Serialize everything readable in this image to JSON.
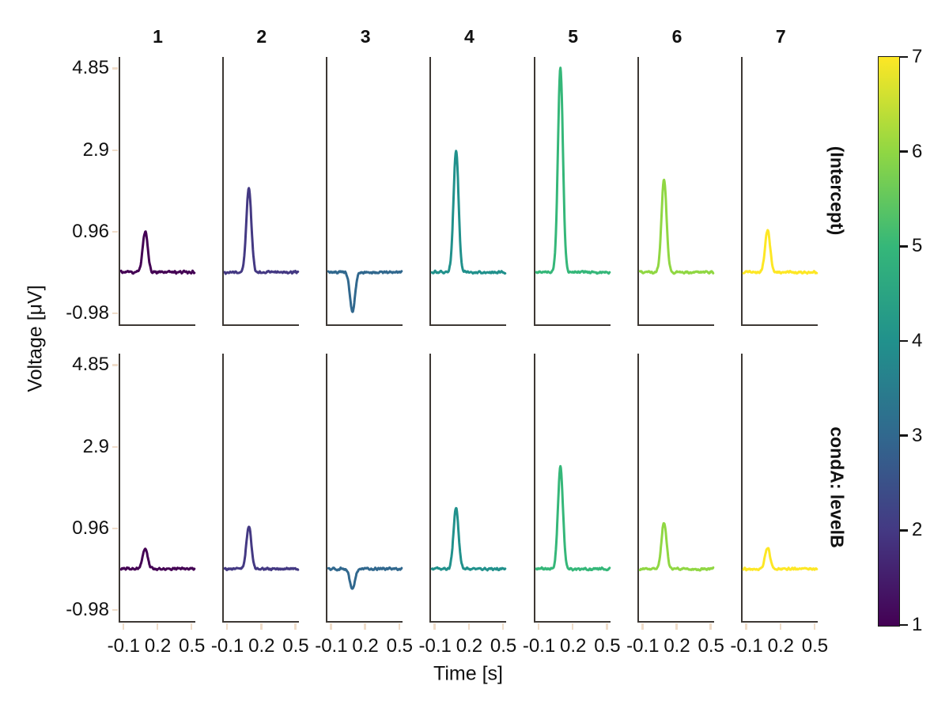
{
  "figure": {
    "background": "#ffffff",
    "spine_color": "#3d3834",
    "tick_color": "#f0ddca",
    "text_color": "#111111"
  },
  "chart_data": {
    "type": "line",
    "title": "",
    "layout": "facet grid: 2 rows (regression coefficients) x 7 columns (channels 1-7), shared x and y axes, left+bottom spines only, no grid, vertical viridis colorbar (1-7) at right",
    "columns": [
      "1",
      "2",
      "3",
      "4",
      "5",
      "6",
      "7"
    ],
    "rows": [
      "(Intercept)",
      "condA: levelB"
    ],
    "xlabel": "Time [s]",
    "ylabel": "Voltage [μV]",
    "xticks": [
      -0.1,
      0.2,
      0.5
    ],
    "xtick_labels": [
      "-0.1",
      "0.2",
      "0.5"
    ],
    "yticks": [
      4.85,
      2.9,
      0.96,
      -0.98
    ],
    "ytick_labels": [
      "4.85",
      "2.9",
      "0.96",
      "-0.98"
    ],
    "x_range": [
      -0.13,
      0.53
    ],
    "y_range": [
      -1.24,
      5.12
    ],
    "line_colors": [
      "#440154",
      "#443983",
      "#31688e",
      "#21918c",
      "#35b779",
      "#90d743",
      "#fde725"
    ],
    "waveform": {
      "baseline": 0,
      "peak_time": 0.09,
      "peak_sigma": 0.022,
      "noise_amplitude": 0.04
    },
    "series": [
      {
        "row": "(Intercept)",
        "peak_amplitudes": [
          0.96,
          2.0,
          -0.95,
          2.9,
          4.85,
          2.2,
          1.0
        ]
      },
      {
        "row": "condA: levelB",
        "peak_amplitudes": [
          0.48,
          1.0,
          -0.48,
          1.45,
          2.43,
          1.1,
          0.5
        ]
      }
    ],
    "colorbar": {
      "colormap": "viridis",
      "min": 1,
      "max": 7,
      "tick_labels_top_to_bottom": [
        "7",
        "6",
        "5",
        "4",
        "3",
        "2",
        "1"
      ],
      "gradient_stops_bottom_to_top": [
        "#440154",
        "#443983",
        "#31688e",
        "#21918c",
        "#35b779",
        "#90d743",
        "#fde725"
      ]
    }
  }
}
